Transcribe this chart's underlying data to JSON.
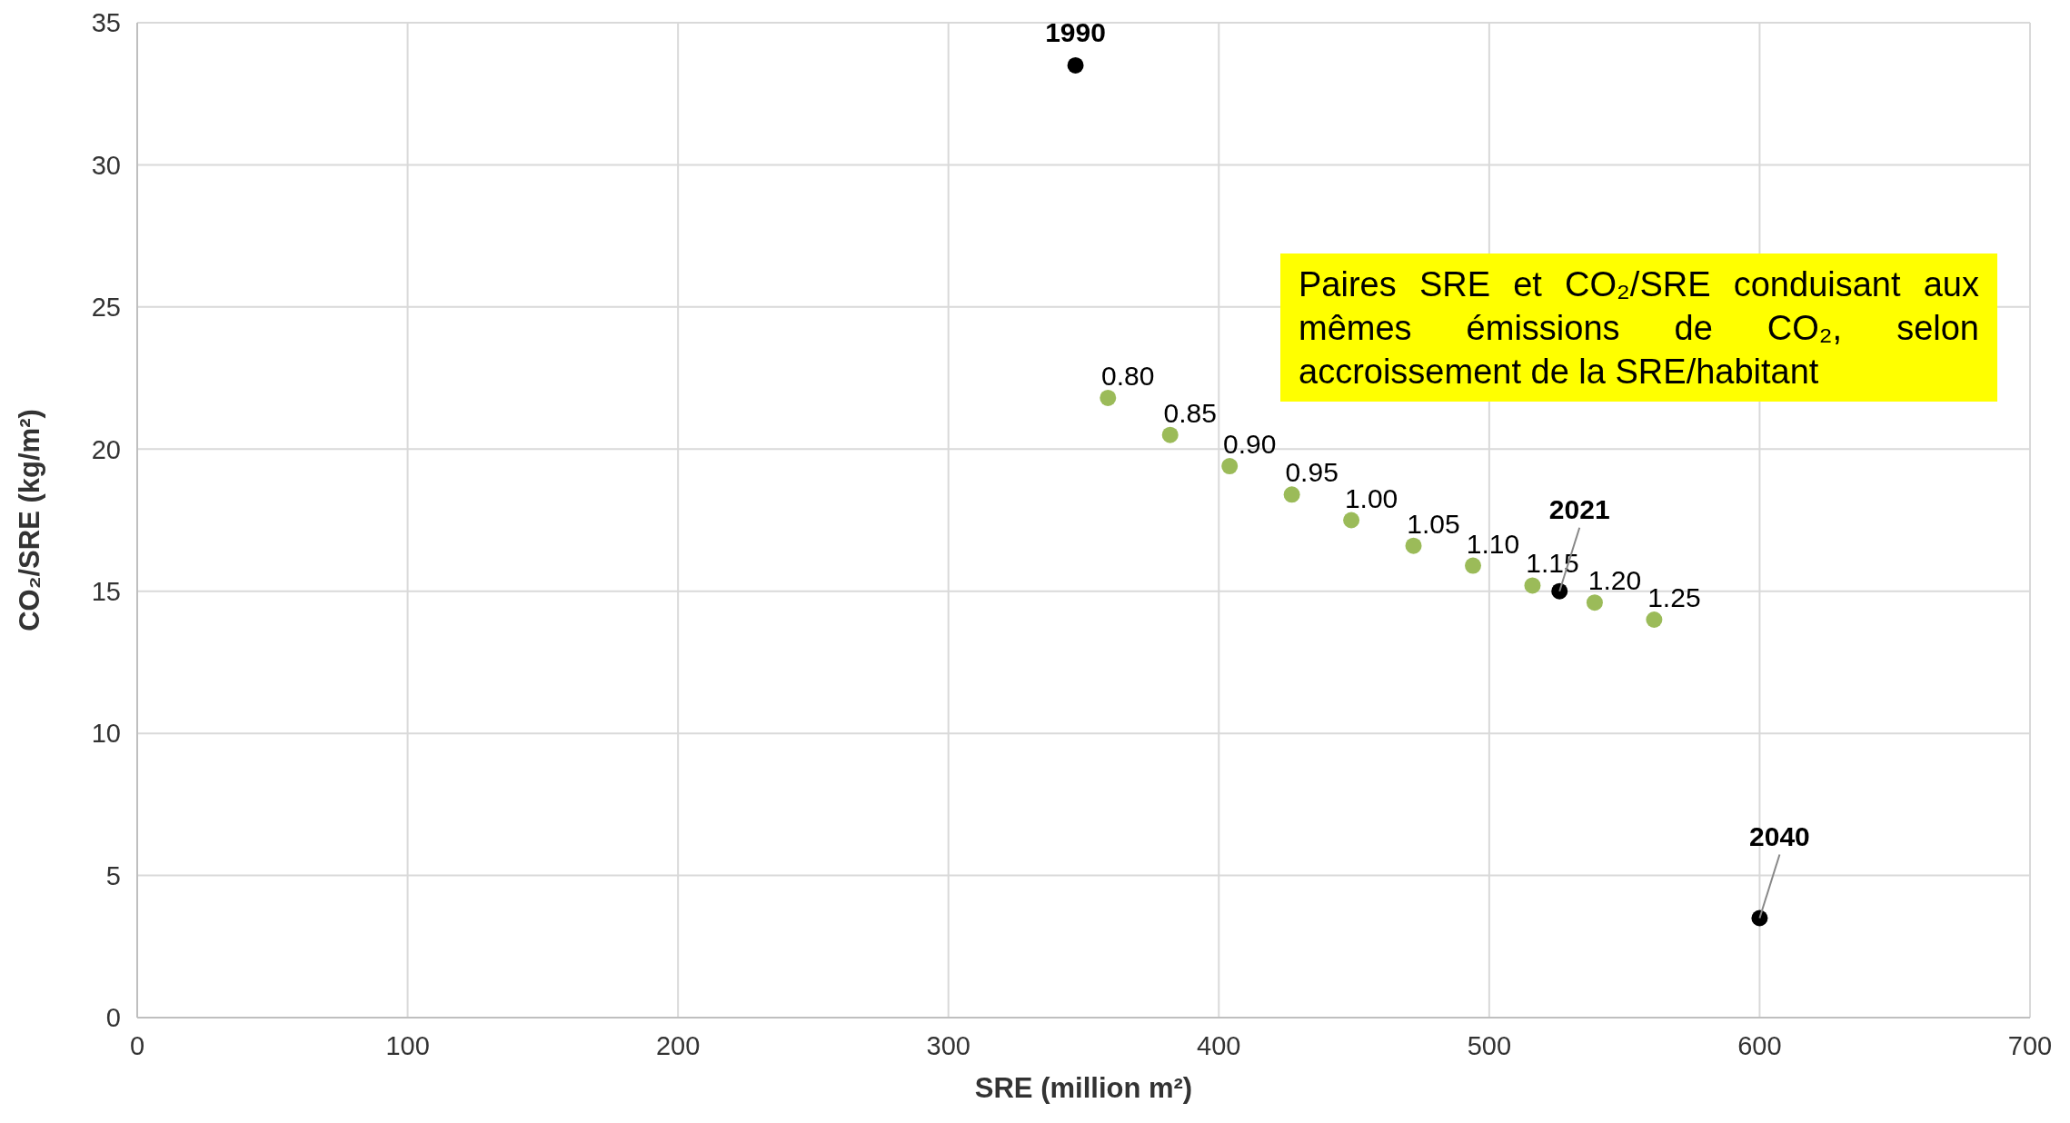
{
  "chart_data": {
    "type": "scatter",
    "xlabel": "SRE (million m²)",
    "ylabel": "CO₂/SRE (kg/m²)",
    "annotations": [
      "Paires SRE et CO₂/SRE conduisant aux mêmes émissions de CO₂, selon accroissement de la SRE/habitant",
      {
        "text": "0.80",
        "x": 359,
        "y": 21.8
      },
      {
        "text": "0.85",
        "x": 382,
        "y": 20.5
      },
      {
        "text": "0.90",
        "x": 404,
        "y": 19.4
      },
      {
        "text": "0.95",
        "x": 427,
        "y": 18.4
      },
      {
        "text": "1.00",
        "x": 449,
        "y": 17.5
      },
      {
        "text": "1.05",
        "x": 472,
        "y": 16.6
      },
      {
        "text": "1.10",
        "x": 494,
        "y": 15.9
      },
      {
        "text": "1.15",
        "x": 516,
        "y": 15.2
      },
      {
        "text": "1.20",
        "x": 539,
        "y": 14.6
      },
      {
        "text": "1.25",
        "x": 561,
        "y": 14.0
      },
      {
        "text": "1990",
        "x": 347,
        "y": 33.5
      },
      {
        "text": "2021",
        "x": 526,
        "y": 15.0
      },
      {
        "text": "2040",
        "x": 600,
        "y": 3.5
      }
    ],
    "xlim": [
      0,
      700
    ],
    "xticks": [
      0,
      100,
      200,
      300,
      400,
      500,
      600,
      700
    ],
    "ylim": [
      0,
      35
    ],
    "yticks": [
      0,
      5,
      10,
      15,
      20,
      25,
      30,
      35
    ],
    "grid": true,
    "marker": "circle",
    "series": [
      {
        "color": "#9bbb59",
        "x": [
          359,
          382,
          404,
          427,
          449,
          472,
          494,
          516,
          539,
          561
        ],
        "values": [
          21.8,
          20.5,
          19.4,
          18.4,
          17.5,
          16.6,
          15.9,
          15.2,
          14.6,
          14.0
        ]
      },
      {
        "color": "#000000",
        "x": [
          347,
          526,
          600
        ],
        "values": [
          33.5,
          15.0,
          3.5
        ]
      }
    ]
  }
}
